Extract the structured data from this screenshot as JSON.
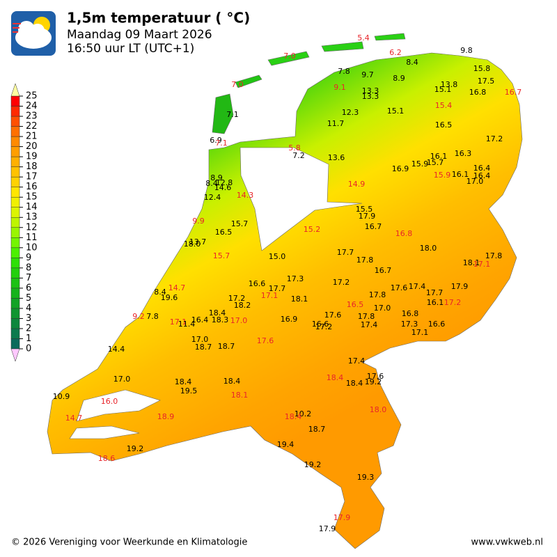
{
  "header": {
    "title": "1,5m temperatuur ( °C)",
    "date": "Maandag 09 Maart 2026",
    "time": "16:50 uur LT (UTC+1)"
  },
  "legend": {
    "ticks": [
      0,
      1,
      2,
      3,
      4,
      5,
      6,
      7,
      8,
      9,
      10,
      11,
      12,
      13,
      14,
      15,
      16,
      17,
      18,
      19,
      20,
      21,
      22,
      23,
      24,
      25
    ],
    "colors": [
      "#0b6b5c",
      "#0c7a4d",
      "#0d873c",
      "#0f9530",
      "#12a326",
      "#16b31c",
      "#1bc214",
      "#22d00c",
      "#2ee006",
      "#4cf000",
      "#74f500",
      "#9af500",
      "#bef500",
      "#dcf500",
      "#f0f000",
      "#ffe600",
      "#ffd200",
      "#ffc200",
      "#ffb000",
      "#ff9e00",
      "#ff8a00",
      "#ff7000",
      "#ff5000",
      "#ff2a00",
      "#ff0000"
    ],
    "over_color": "#ffffa0",
    "under_color": "#ffc8ff"
  },
  "stations": [
    {
      "label": "5.4",
      "color": "#e8242a"
    },
    {
      "label": "7.0",
      "color": "#e8242a"
    },
    {
      "label": "6.2",
      "color": "#e8242a"
    },
    {
      "label": "9.8",
      "color": "#000000"
    },
    {
      "label": "8.4",
      "color": "#000000"
    },
    {
      "label": "7.8",
      "color": "#000000"
    },
    {
      "label": "9.7",
      "color": "#000000"
    },
    {
      "label": "8.9",
      "color": "#000000"
    },
    {
      "label": "15.8",
      "color": "#000000"
    },
    {
      "label": "17.5",
      "color": "#000000"
    },
    {
      "label": "7.0",
      "color": "#e8242a"
    },
    {
      "label": "9.1",
      "color": "#e8242a"
    },
    {
      "label": "13.3",
      "color": "#000000"
    },
    {
      "label": "13.3",
      "color": "#000000"
    },
    {
      "label": "13.8",
      "color": "#000000"
    },
    {
      "label": "15.1",
      "color": "#000000"
    },
    {
      "label": "16.8",
      "color": "#000000"
    },
    {
      "label": "16.7",
      "color": "#e8242a"
    },
    {
      "label": "15.4",
      "color": "#e8242a"
    },
    {
      "label": "7.1",
      "color": "#000000"
    },
    {
      "label": "12.3",
      "color": "#000000"
    },
    {
      "label": "15.1",
      "color": "#000000"
    },
    {
      "label": "11.7",
      "color": "#000000"
    },
    {
      "label": "16.5",
      "color": "#000000"
    },
    {
      "label": "17.2",
      "color": "#000000"
    },
    {
      "label": "6.9",
      "color": "#000000"
    },
    {
      "label": "7.1",
      "color": "#e8242a"
    },
    {
      "label": "5.8",
      "color": "#e8242a"
    },
    {
      "label": "7.2",
      "color": "#000000"
    },
    {
      "label": "13.6",
      "color": "#000000"
    },
    {
      "label": "16.1",
      "color": "#000000"
    },
    {
      "label": "16.3",
      "color": "#000000"
    },
    {
      "label": "15.7",
      "color": "#000000"
    },
    {
      "label": "15.9",
      "color": "#000000"
    },
    {
      "label": "16.9",
      "color": "#000000"
    },
    {
      "label": "16.4",
      "color": "#000000"
    },
    {
      "label": "15.9",
      "color": "#e8242a"
    },
    {
      "label": "16.1",
      "color": "#000000"
    },
    {
      "label": "16.4",
      "color": "#000000"
    },
    {
      "label": "17.0",
      "color": "#000000"
    },
    {
      "label": "8.9",
      "color": "#000000"
    },
    {
      "label": "8.4",
      "color": "#000000"
    },
    {
      "label": "12.8",
      "color": "#000000"
    },
    {
      "label": "14.6",
      "color": "#000000"
    },
    {
      "label": "14.9",
      "color": "#e8242a"
    },
    {
      "label": "14.3",
      "color": "#e8242a"
    },
    {
      "label": "12.4",
      "color": "#000000"
    },
    {
      "label": "15.5",
      "color": "#000000"
    },
    {
      "label": "17.9",
      "color": "#000000"
    },
    {
      "label": "9.9",
      "color": "#e8242a"
    },
    {
      "label": "15.7",
      "color": "#000000"
    },
    {
      "label": "16.7",
      "color": "#000000"
    },
    {
      "label": "15.2",
      "color": "#e8242a"
    },
    {
      "label": "16.5",
      "color": "#000000"
    },
    {
      "label": "16.8",
      "color": "#e8242a"
    },
    {
      "label": "13.7",
      "color": "#000000"
    },
    {
      "label": "18.0",
      "color": "#000000"
    },
    {
      "label": "18.0",
      "color": "#000000"
    },
    {
      "label": "15.0",
      "color": "#000000"
    },
    {
      "label": "17.7",
      "color": "#000000"
    },
    {
      "label": "15.7",
      "color": "#e8242a"
    },
    {
      "label": "17.8",
      "color": "#000000"
    },
    {
      "label": "17.8",
      "color": "#000000"
    },
    {
      "label": "18.1",
      "color": "#000000"
    },
    {
      "label": "17.1",
      "color": "#e8242a"
    },
    {
      "label": "16.7",
      "color": "#000000"
    },
    {
      "label": "17.3",
      "color": "#000000"
    },
    {
      "label": "17.2",
      "color": "#000000"
    },
    {
      "label": "16.6",
      "color": "#000000"
    },
    {
      "label": "17.7",
      "color": "#000000"
    },
    {
      "label": "14.7",
      "color": "#e8242a"
    },
    {
      "label": "8.4",
      "color": "#000000"
    },
    {
      "label": "17.6",
      "color": "#000000"
    },
    {
      "label": "17.4",
      "color": "#000000"
    },
    {
      "label": "17.9",
      "color": "#000000"
    },
    {
      "label": "19.6",
      "color": "#000000"
    },
    {
      "label": "17.2",
      "color": "#000000"
    },
    {
      "label": "17.1",
      "color": "#e8242a"
    },
    {
      "label": "18.1",
      "color": "#000000"
    },
    {
      "label": "17.8",
      "color": "#000000"
    },
    {
      "label": "17.7",
      "color": "#000000"
    },
    {
      "label": "18.2",
      "color": "#000000"
    },
    {
      "label": "16.1",
      "color": "#000000"
    },
    {
      "label": "17.2",
      "color": "#e8242a"
    },
    {
      "label": "16.5",
      "color": "#e8242a"
    },
    {
      "label": "17.0",
      "color": "#000000"
    },
    {
      "label": "18.4",
      "color": "#000000"
    },
    {
      "label": "16.8",
      "color": "#000000"
    },
    {
      "label": "9.2",
      "color": "#e8242a"
    },
    {
      "label": "7.8",
      "color": "#000000"
    },
    {
      "label": "17.1",
      "color": "#e8242a"
    },
    {
      "label": "11.4",
      "color": "#000000"
    },
    {
      "label": "16.4",
      "color": "#000000"
    },
    {
      "label": "18.3",
      "color": "#000000"
    },
    {
      "label": "17.0",
      "color": "#e8242a"
    },
    {
      "label": "16.9",
      "color": "#000000"
    },
    {
      "label": "17.6",
      "color": "#000000"
    },
    {
      "label": "17.8",
      "color": "#000000"
    },
    {
      "label": "16.6",
      "color": "#000000"
    },
    {
      "label": "17.2",
      "color": "#000000"
    },
    {
      "label": "17.4",
      "color": "#000000"
    },
    {
      "label": "17.3",
      "color": "#000000"
    },
    {
      "label": "16.6",
      "color": "#000000"
    },
    {
      "label": "17.1",
      "color": "#000000"
    },
    {
      "label": "17.0",
      "color": "#000000"
    },
    {
      "label": "17.6",
      "color": "#e8242a"
    },
    {
      "label": "18.7",
      "color": "#000000"
    },
    {
      "label": "18.7",
      "color": "#000000"
    },
    {
      "label": "14.4",
      "color": "#000000"
    },
    {
      "label": "17.4",
      "color": "#000000"
    },
    {
      "label": "17.6",
      "color": "#000000"
    },
    {
      "label": "17.0",
      "color": "#000000"
    },
    {
      "label": "18.4",
      "color": "#e8242a"
    },
    {
      "label": "18.4",
      "color": "#000000"
    },
    {
      "label": "19.2",
      "color": "#000000"
    },
    {
      "label": "18.4",
      "color": "#000000"
    },
    {
      "label": "18.4",
      "color": "#000000"
    },
    {
      "label": "19.5",
      "color": "#000000"
    },
    {
      "label": "10.9",
      "color": "#000000"
    },
    {
      "label": "18.1",
      "color": "#e8242a"
    },
    {
      "label": "16.0",
      "color": "#e8242a"
    },
    {
      "label": "18.0",
      "color": "#e8242a"
    },
    {
      "label": "18.9",
      "color": "#e8242a"
    },
    {
      "label": "10.2",
      "color": "#000000"
    },
    {
      "label": "18.4",
      "color": "#e8242a"
    },
    {
      "label": "14.7",
      "color": "#e8242a"
    },
    {
      "label": "18.7",
      "color": "#000000"
    },
    {
      "label": "19.4",
      "color": "#000000"
    },
    {
      "label": "19.2",
      "color": "#000000"
    },
    {
      "label": "18.6",
      "color": "#e8242a"
    },
    {
      "label": "19.2",
      "color": "#000000"
    },
    {
      "label": "19.3",
      "color": "#000000"
    },
    {
      "label": "17.9",
      "color": "#e8242a"
    },
    {
      "label": "17.9",
      "color": "#000000"
    }
  ],
  "footer": {
    "copyright": "© 2026 Vereniging voor Weerkunde en Klimatologie",
    "website": "www.vwkweb.nl"
  }
}
